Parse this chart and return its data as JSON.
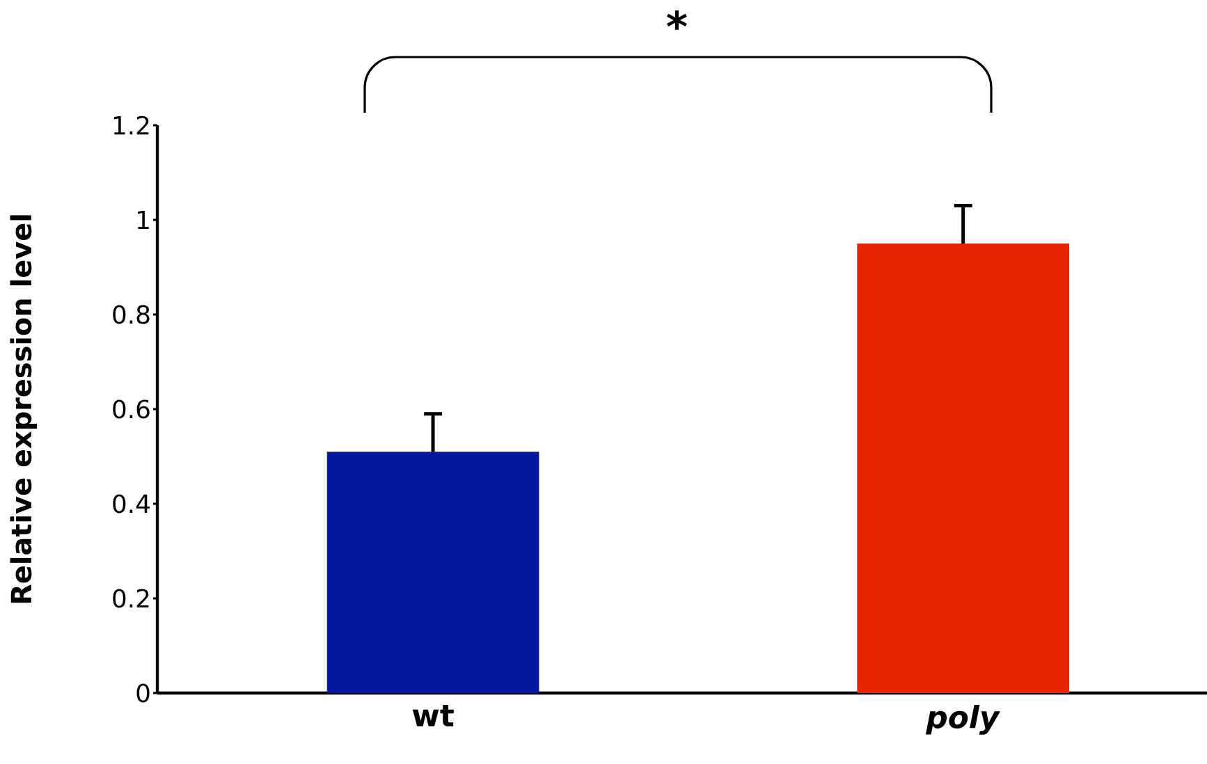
{
  "chart_data": {
    "type": "bar",
    "ylabel": "Relative expression level",
    "categories": [
      "wt",
      "*poly*"
    ],
    "values": [
      0.51,
      0.95
    ],
    "colors": [
      "#0519a0",
      "#e52600"
    ],
    "errors": [
      [
        0.51,
        0.59
      ],
      [
        0.95,
        1.03
      ]
    ],
    "ylim": [
      0,
      1.2
    ],
    "yticks": [
      0,
      0.2,
      0.4,
      0.6,
      0.8,
      1,
      1.2
    ],
    "grid": false,
    "annotations": [
      "*"
    ]
  }
}
